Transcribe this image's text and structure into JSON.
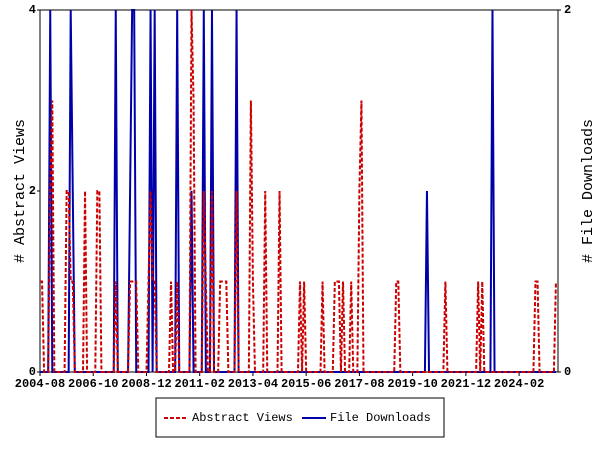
{
  "chart_data": {
    "type": "line",
    "y_label": "# Abstract Views",
    "y2_label": "# File Downloads",
    "x": [
      "2004-08",
      "2004-09",
      "2004-10",
      "2004-12",
      "2005-01",
      "2005-02",
      "2005-03",
      "2005-08",
      "2005-09",
      "2005-10",
      "2005-11",
      "2005-12",
      "2006-01",
      "2006-05",
      "2006-06",
      "2006-07",
      "2006-11",
      "2006-12",
      "2007-01",
      "2007-02",
      "2007-08",
      "2007-09",
      "2007-10",
      "2008-03",
      "2008-04",
      "2008-05",
      "2008-06",
      "2008-07",
      "2008-08",
      "2008-12",
      "2009-01",
      "2009-02",
      "2009-03",
      "2009-04",
      "2009-05",
      "2009-11",
      "2009-12",
      "2010-01",
      "2010-02",
      "2010-03",
      "2010-04",
      "2010-09",
      "2010-10",
      "2010-11",
      "2010-12",
      "2011-03",
      "2011-04",
      "2011-05",
      "2011-06",
      "2011-07",
      "2011-08",
      "2011-09",
      "2011-11",
      "2011-12",
      "2012-01",
      "2012-02",
      "2012-03",
      "2012-04",
      "2012-07",
      "2012-08",
      "2012-09",
      "2013-02",
      "2013-03",
      "2013-04",
      "2013-05",
      "2013-09",
      "2013-10",
      "2013-11",
      "2014-04",
      "2014-05",
      "2014-06",
      "2015-02",
      "2015-03",
      "2015-04",
      "2015-05",
      "2015-06",
      "2016-01",
      "2016-02",
      "2016-03",
      "2016-07",
      "2016-08",
      "2016-09",
      "2016-10",
      "2016-11",
      "2016-12",
      "2017-01",
      "2017-03",
      "2017-04",
      "2017-05",
      "2017-07",
      "2017-08",
      "2017-09",
      "2017-10",
      "2019-01",
      "2019-02",
      "2019-03",
      "2019-04",
      "2020-04",
      "2020-05",
      "2020-06",
      "2021-01",
      "2021-02",
      "2021-03",
      "2022-05",
      "2022-06",
      "2022-07",
      "2022-08",
      "2022-09",
      "2022-12",
      "2023-01",
      "2023-02",
      "2024-09",
      "2024-10",
      "2024-11",
      "2024-12",
      "2025-07",
      "2025-08"
    ],
    "series": [
      {
        "name": "Abstract Views",
        "color": "#cc0000",
        "dash": true,
        "axis": "y",
        "values": [
          1,
          1,
          0,
          0,
          2,
          3,
          0,
          0,
          2,
          2,
          1,
          1,
          0,
          0,
          2,
          0,
          0,
          2,
          2,
          0,
          0,
          1,
          0,
          0,
          1,
          1,
          1,
          1,
          0,
          0,
          1,
          2,
          1,
          1,
          0,
          0,
          1,
          0,
          0,
          1,
          0,
          0,
          4,
          3,
          0,
          0,
          2,
          1,
          0,
          0,
          2,
          0,
          0,
          1,
          1,
          1,
          1,
          0,
          0,
          2,
          0,
          0,
          3,
          1,
          0,
          0,
          2,
          0,
          0,
          2,
          0,
          0,
          1,
          0,
          1,
          0,
          0,
          1,
          0,
          0,
          1,
          1,
          1,
          0,
          1,
          0,
          0,
          1,
          0,
          0,
          2,
          3,
          0,
          0,
          1,
          1,
          0,
          0,
          0,
          0,
          0,
          1,
          0,
          0,
          1,
          0,
          1,
          0,
          0,
          0,
          0,
          0,
          1,
          1,
          0,
          0,
          1
        ]
      },
      {
        "name": "File Downloads",
        "color": "#0000aa",
        "dash": false,
        "axis": "y2",
        "values": [
          0,
          0,
          0,
          0,
          2,
          0,
          0,
          0,
          0,
          0,
          2,
          1,
          0,
          0,
          0,
          0,
          0,
          0,
          0,
          0,
          0,
          2,
          0,
          0,
          1,
          2,
          2,
          0,
          0,
          0,
          0,
          2,
          0,
          2,
          0,
          0,
          0,
          0,
          0,
          2,
          0,
          0,
          1,
          0,
          0,
          0,
          2,
          0,
          0,
          0,
          2,
          0,
          0,
          0,
          0,
          0,
          0,
          0,
          0,
          2,
          0,
          0,
          0,
          0,
          0,
          0,
          0,
          0,
          0,
          0,
          0,
          0,
          0,
          0,
          0,
          0,
          0,
          0,
          0,
          0,
          0,
          0,
          0,
          0,
          0,
          0,
          0,
          0,
          0,
          0,
          0,
          0,
          0,
          0,
          0,
          0,
          0,
          0,
          1,
          0,
          0,
          0,
          0,
          0,
          0,
          0,
          0,
          0,
          0,
          2,
          0,
          0,
          0,
          0,
          0,
          0,
          0
        ]
      }
    ],
    "xlim": [
      "2004-08",
      "2025-09"
    ],
    "xticks": [
      "2004-08",
      "2006-10",
      "2008-12",
      "2011-02",
      "2013-04",
      "2015-06",
      "2017-08",
      "2019-10",
      "2021-12",
      "2024-02"
    ],
    "ylim": [
      0,
      4
    ],
    "yticks": [
      0,
      2,
      4
    ],
    "y2lim": [
      0,
      2
    ],
    "y2ticks": [
      0,
      2
    ]
  }
}
